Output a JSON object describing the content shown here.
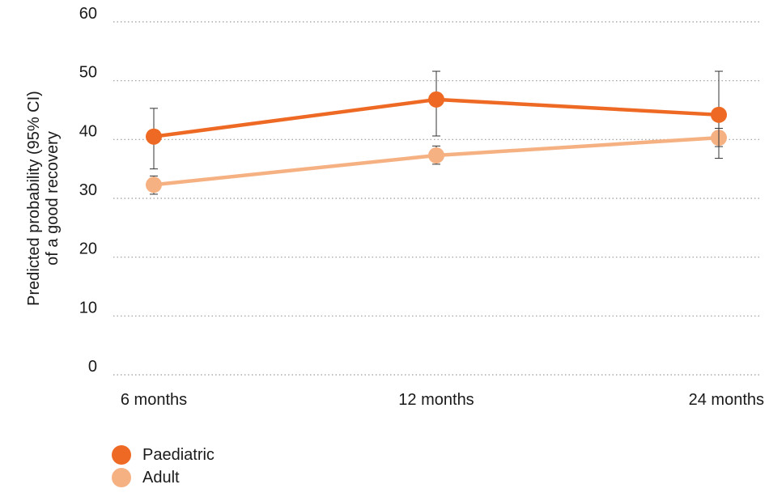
{
  "chart_data": {
    "type": "line",
    "title": "",
    "xlabel": "",
    "ylabel": [
      "Predicted probability (95% CI)",
      "of a good recovery"
    ],
    "categories": [
      "6 months",
      "12 months",
      "24 months"
    ],
    "ylim": [
      0,
      60
    ],
    "yticks": [
      "0",
      "10",
      "20",
      "30",
      "40",
      "50",
      "60"
    ],
    "grid": "horizontal-dotted",
    "legend_position": "bottom-left",
    "series": [
      {
        "name": "Paediatric",
        "color": "#ee6a24",
        "values": [
          40.5,
          46.8,
          44.2
        ],
        "ci_low": [
          35.0,
          40.6,
          36.8
        ],
        "ci_high": [
          45.3,
          51.6,
          51.6
        ]
      },
      {
        "name": "Adult",
        "color": "#f6b183",
        "values": [
          32.3,
          37.3,
          40.3
        ],
        "ci_low": [
          30.7,
          35.8,
          38.8
        ],
        "ci_high": [
          33.8,
          38.9,
          41.9
        ]
      }
    ]
  }
}
